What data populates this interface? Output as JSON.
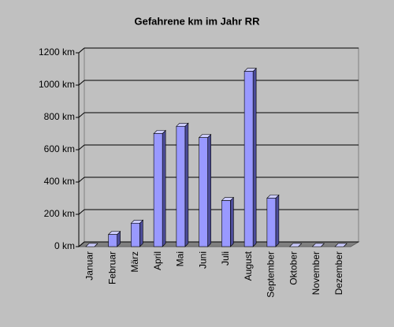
{
  "chart_data": {
    "type": "bar",
    "title": "Gefahrene km im Jahr RR",
    "categories": [
      "Januar",
      "Februar",
      "März",
      "April",
      "Mai",
      "Juni",
      "Juli",
      "August",
      "September",
      "Oktober",
      "November",
      "Dezember"
    ],
    "values": [
      0,
      75,
      145,
      700,
      745,
      675,
      285,
      1085,
      300,
      0,
      0,
      0
    ],
    "color": "#9999ff",
    "ylim": [
      0,
      1200
    ],
    "yticks": [
      {
        "value": 0,
        "label": "0 km"
      },
      {
        "value": 200,
        "label": "200 km"
      },
      {
        "value": 400,
        "label": "400 km"
      },
      {
        "value": 600,
        "label": "600 km"
      },
      {
        "value": 800,
        "label": "800 km"
      },
      {
        "value": 1000,
        "label": "1000 km"
      },
      {
        "value": 1200,
        "label": "1200 km"
      }
    ],
    "grid": true
  }
}
